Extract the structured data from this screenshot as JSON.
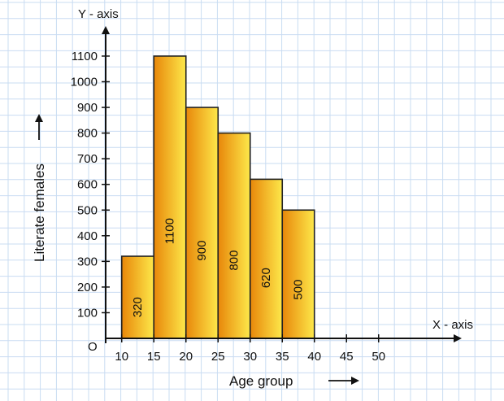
{
  "chart_data": {
    "type": "bar",
    "style": "histogram",
    "categories": [
      "10-15",
      "15-20",
      "20-25",
      "25-30",
      "30-35",
      "35-40"
    ],
    "bins": [
      [
        10,
        15
      ],
      [
        15,
        20
      ],
      [
        20,
        25
      ],
      [
        25,
        30
      ],
      [
        30,
        35
      ],
      [
        35,
        40
      ]
    ],
    "values": [
      320,
      1100,
      900,
      800,
      620,
      500
    ],
    "data_labels": [
      "320",
      "1100",
      "900",
      "800",
      "620",
      "500"
    ],
    "xlabel": "Age group",
    "ylabel": "Literate females",
    "x_axis_title": "X - axis",
    "y_axis_title": "Y - axis",
    "origin_label": "O",
    "x_ticks": [
      "10",
      "15",
      "20",
      "25",
      "30",
      "35",
      "40",
      "45",
      "50"
    ],
    "y_ticks": [
      "100",
      "200",
      "300",
      "400",
      "500",
      "600",
      "700",
      "800",
      "900",
      "1000",
      "1100"
    ],
    "ylim": [
      0,
      1100
    ],
    "grid": true,
    "legend": "none",
    "colors": {
      "bar_dark": "#e8870a",
      "bar_light": "#fde84a",
      "bar_stroke": "#222222",
      "grid": "#c9dcf2",
      "axis": "#111111"
    }
  }
}
